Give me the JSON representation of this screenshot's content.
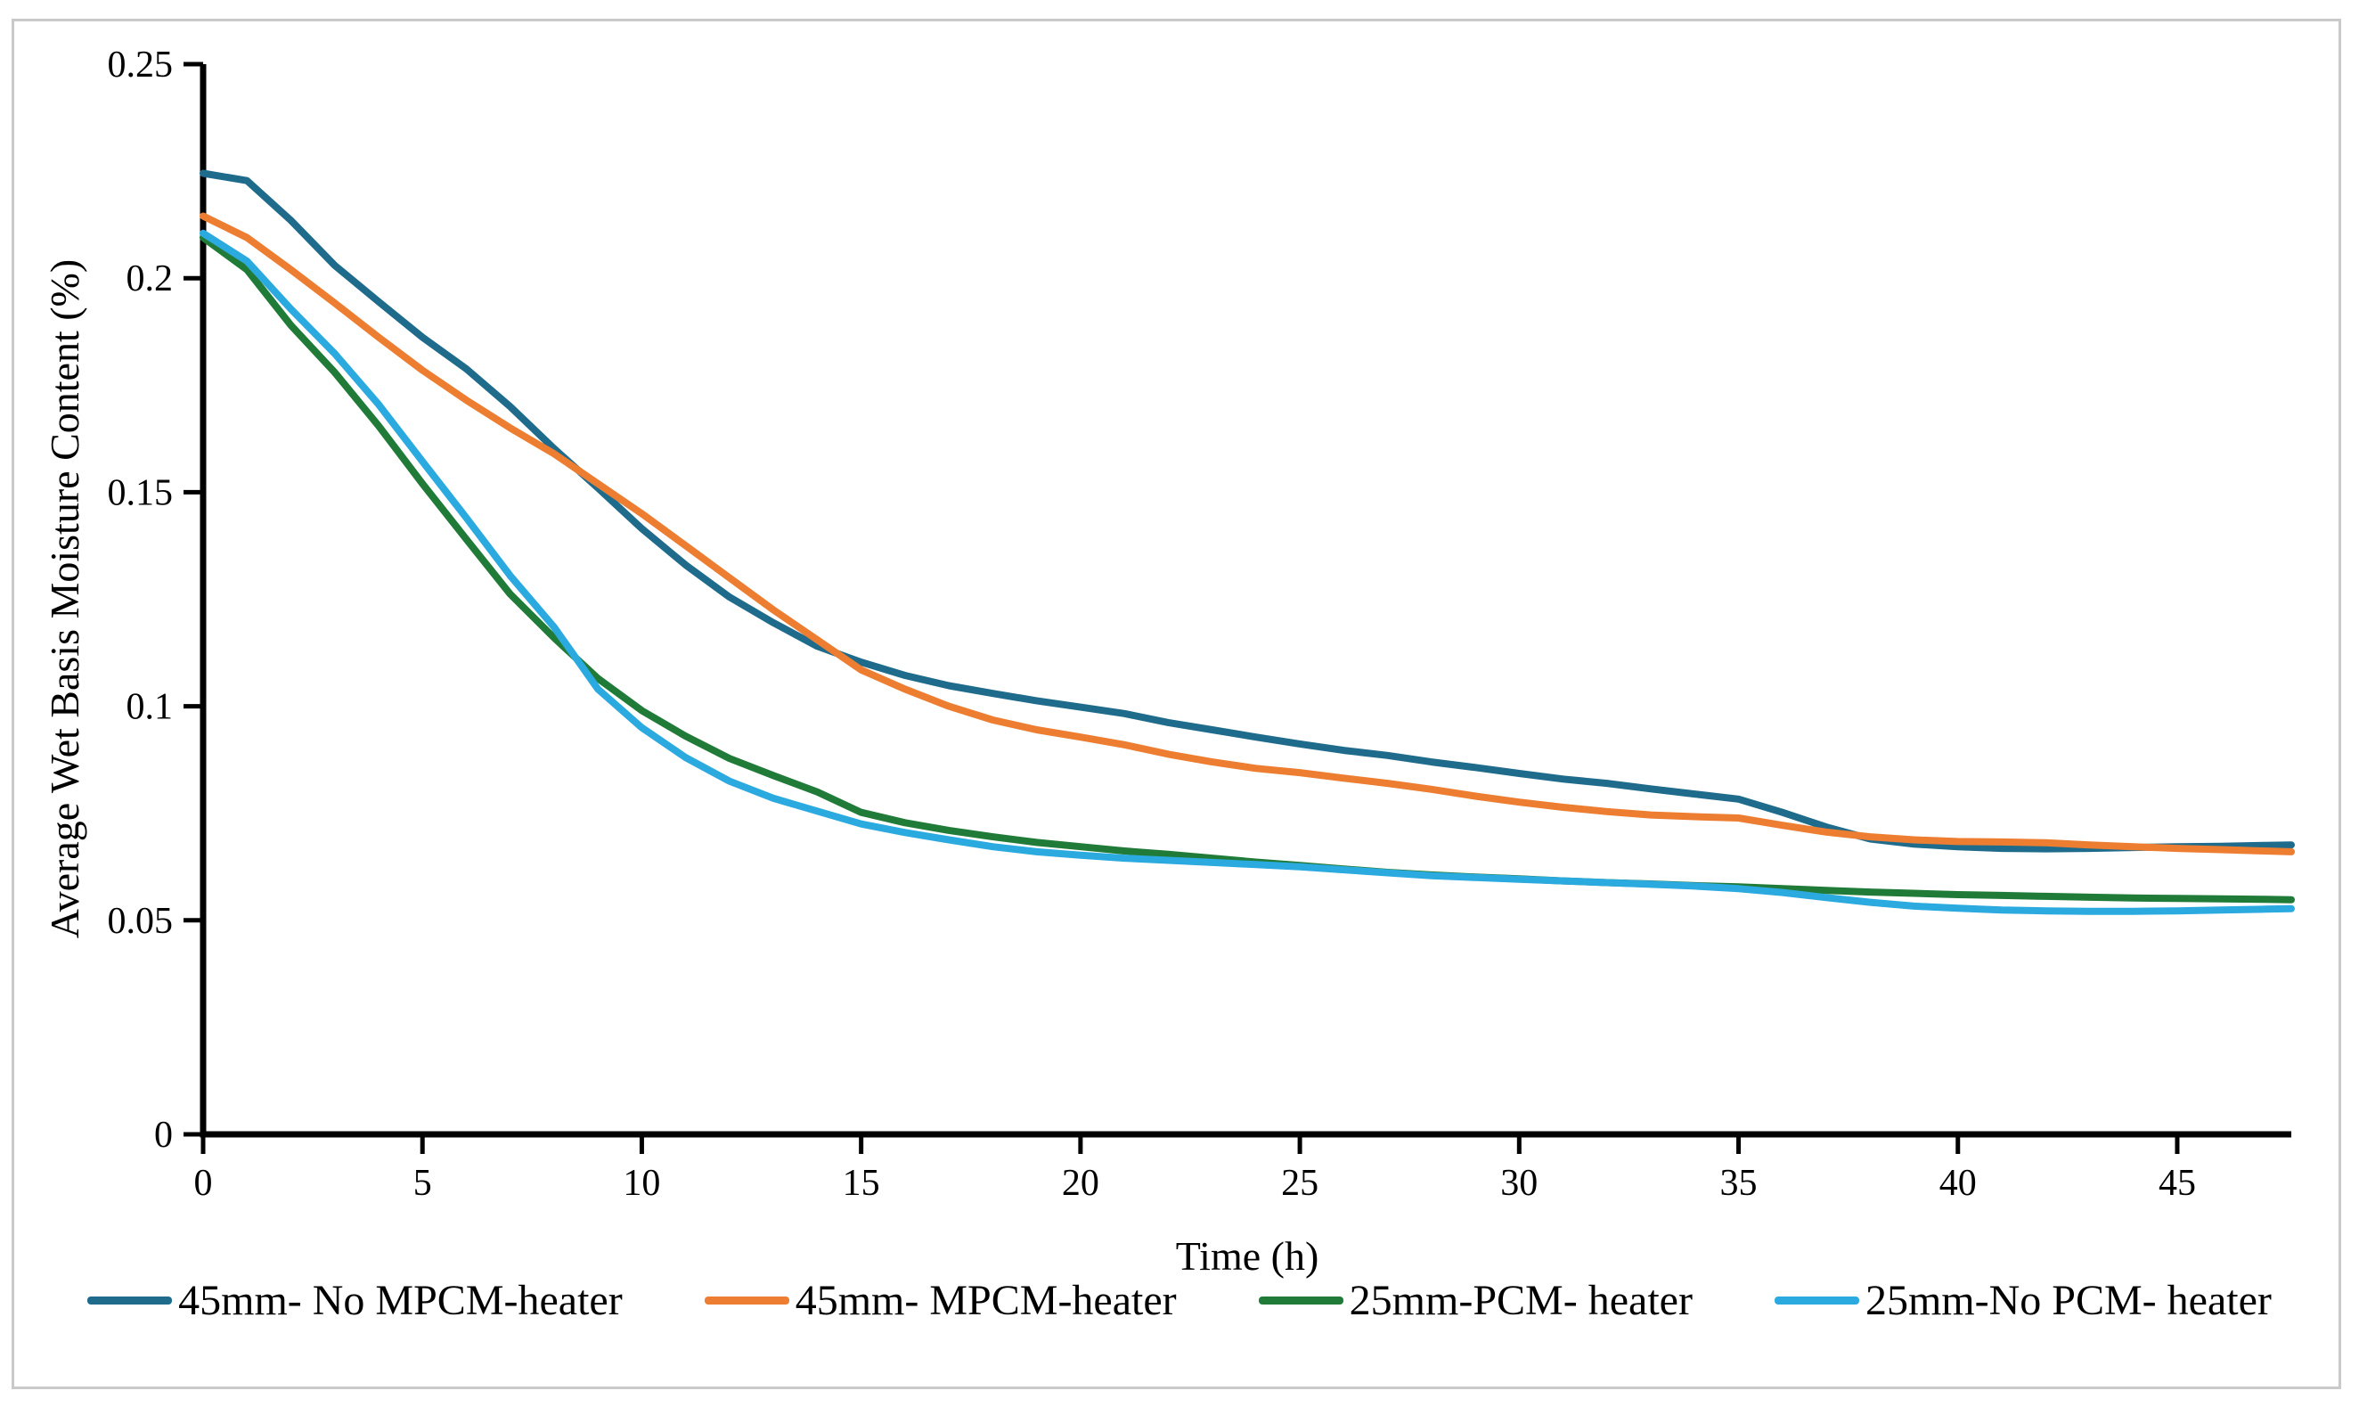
{
  "figure": {
    "background": "#FFFFFF",
    "border_color": "#C9C9C9"
  },
  "chart_data": {
    "type": "line",
    "title": "",
    "xlabel": "Time (h)",
    "ylabel": "Average Wet Basis Moisture Content (%)",
    "xlim": [
      0,
      47.6
    ],
    "ylim": [
      0,
      0.25
    ],
    "grid": false,
    "legend_position": "bottom",
    "x_ticks": [
      0,
      5,
      10,
      15,
      20,
      25,
      30,
      35,
      40,
      45
    ],
    "x_tick_labels": [
      "0",
      "5",
      "10",
      "15",
      "20",
      "25",
      "30",
      "35",
      "40",
      "45"
    ],
    "y_ticks": [
      0,
      0.05,
      0.1,
      0.15,
      0.2,
      0.25
    ],
    "y_tick_labels": [
      "0",
      "0.05",
      "0.1",
      "0.15",
      "0.2",
      "0.25"
    ],
    "x": [
      0,
      1,
      2,
      3,
      4,
      5,
      6,
      7,
      8,
      9,
      10,
      11,
      12,
      13,
      14,
      15,
      16,
      17,
      18,
      19,
      20,
      21,
      22,
      23,
      24,
      25,
      26,
      27,
      28,
      29,
      30,
      31,
      32,
      33,
      34,
      35,
      36,
      37,
      38,
      39,
      40,
      41,
      42,
      43,
      44,
      45,
      46,
      47,
      47.6
    ],
    "series": [
      {
        "name": "45mm- No MPCM-heater",
        "color": "#1F6B8C",
        "values": [
          0.2245,
          0.2228,
          0.2135,
          0.203,
          0.1945,
          0.1862,
          0.1788,
          0.17,
          0.1602,
          0.151,
          0.1415,
          0.133,
          0.1255,
          0.1195,
          0.114,
          0.1103,
          0.1072,
          0.1048,
          0.103,
          0.1013,
          0.0998,
          0.0983,
          0.0962,
          0.0945,
          0.0928,
          0.0912,
          0.0897,
          0.0885,
          0.087,
          0.0857,
          0.0843,
          0.083,
          0.082,
          0.0807,
          0.0795,
          0.0783,
          0.0752,
          0.0718,
          0.069,
          0.0678,
          0.0672,
          0.0668,
          0.0667,
          0.0668,
          0.067,
          0.0672,
          0.0673,
          0.0675,
          0.0676
        ]
      },
      {
        "name": "45mm- MPCM-heater",
        "color": "#ED7D31",
        "values": [
          0.2145,
          0.2095,
          0.202,
          0.1942,
          0.1862,
          0.1785,
          0.1715,
          0.165,
          0.159,
          0.152,
          0.145,
          0.1375,
          0.13,
          0.1225,
          0.1155,
          0.1085,
          0.104,
          0.1,
          0.0968,
          0.0945,
          0.0928,
          0.091,
          0.0888,
          0.087,
          0.0855,
          0.0845,
          0.0832,
          0.082,
          0.0806,
          0.079,
          0.0776,
          0.0764,
          0.0754,
          0.0746,
          0.0742,
          0.0739,
          0.0722,
          0.0706,
          0.0695,
          0.0688,
          0.0684,
          0.0683,
          0.0681,
          0.0676,
          0.0672,
          0.0668,
          0.0665,
          0.0662,
          0.066
        ]
      },
      {
        "name": "25mm-PCM- heater",
        "color": "#217B38",
        "values": [
          0.2095,
          0.202,
          0.189,
          0.178,
          0.1655,
          0.152,
          0.139,
          0.1262,
          0.116,
          0.1065,
          0.099,
          0.093,
          0.0878,
          0.0838,
          0.08,
          0.0752,
          0.0728,
          0.071,
          0.0695,
          0.0682,
          0.0672,
          0.0662,
          0.0654,
          0.0645,
          0.0636,
          0.0628,
          0.062,
          0.0612,
          0.0606,
          0.0601,
          0.0597,
          0.0592,
          0.0588,
          0.0585,
          0.0581,
          0.0578,
          0.0574,
          0.057,
          0.0566,
          0.0563,
          0.056,
          0.0558,
          0.0556,
          0.0554,
          0.0552,
          0.0551,
          0.055,
          0.0549,
          0.0548
        ]
      },
      {
        "name": "25mm-No PCM- heater",
        "color": "#2BAAE0",
        "values": [
          0.2105,
          0.204,
          0.1928,
          0.1824,
          0.1705,
          0.1572,
          0.144,
          0.1305,
          0.1185,
          0.104,
          0.095,
          0.088,
          0.0825,
          0.0785,
          0.0755,
          0.0725,
          0.0705,
          0.0688,
          0.0672,
          0.066,
          0.0652,
          0.0645,
          0.064,
          0.0635,
          0.063,
          0.0625,
          0.0618,
          0.0611,
          0.0604,
          0.06,
          0.0596,
          0.0592,
          0.0588,
          0.0584,
          0.058,
          0.0574,
          0.0565,
          0.0553,
          0.0542,
          0.0533,
          0.0528,
          0.0524,
          0.0522,
          0.0521,
          0.0521,
          0.0522,
          0.0524,
          0.0526,
          0.0527
        ]
      }
    ]
  }
}
